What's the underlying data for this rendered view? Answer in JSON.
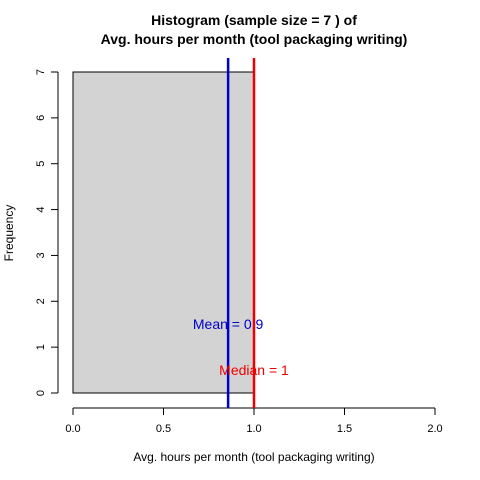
{
  "chart_data": {
    "type": "bar",
    "title_line1": "Histogram (sample size =  7 ) of",
    "title_line2": "Avg. hours per month (tool packaging writing)",
    "xlabel": "Avg. hours per month (tool packaging writing)",
    "ylabel": "Frequency",
    "bins": [
      {
        "start": 0.0,
        "end": 1.0,
        "count": 7
      }
    ],
    "xlim": [
      0,
      2
    ],
    "ylim": [
      0,
      7
    ],
    "x_ticks": [
      {
        "value": 0.0,
        "label": "0.0"
      },
      {
        "value": 0.5,
        "label": "0.5"
      },
      {
        "value": 1.0,
        "label": "1.0"
      },
      {
        "value": 1.5,
        "label": "1.5"
      },
      {
        "value": 2.0,
        "label": "2.0"
      }
    ],
    "y_ticks": [
      {
        "value": 0,
        "label": "0"
      },
      {
        "value": 1,
        "label": "1"
      },
      {
        "value": 2,
        "label": "2"
      },
      {
        "value": 3,
        "label": "3"
      },
      {
        "value": 4,
        "label": "4"
      },
      {
        "value": 5,
        "label": "5"
      },
      {
        "value": 6,
        "label": "6"
      },
      {
        "value": 7,
        "label": "7"
      }
    ],
    "mean": {
      "value": 0.857,
      "label": "Mean = 0.9",
      "color": "#0000cc",
      "label_y": 1.5
    },
    "median": {
      "value": 1.0,
      "label": "Median = 1",
      "color": "#ee0000",
      "label_y": 0.5
    },
    "bar_fill": "#d3d3d3",
    "grid": false
  }
}
